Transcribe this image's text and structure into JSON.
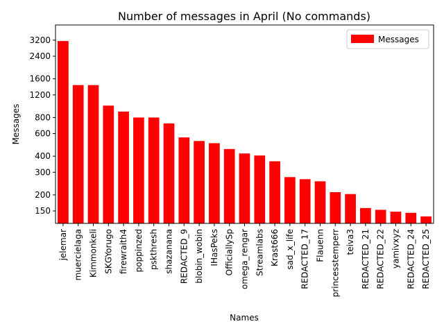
{
  "chart_data": {
    "type": "bar",
    "title": "Number of messages in April (No commands)",
    "xlabel": "Names",
    "ylabel": "Messages",
    "yscale": "log",
    "ylim": [
      120,
      4200
    ],
    "yticks": [
      150,
      200,
      300,
      400,
      600,
      800,
      1200,
      1600,
      2400,
      3200
    ],
    "ytick_labels": [
      "150",
      "200",
      "300",
      "400",
      "600",
      "800",
      "1200",
      "1600",
      "2400",
      "3200"
    ],
    "legend": {
      "placement": "top-right"
    },
    "categories": [
      "jelemar",
      "muercielaga",
      "Kimmonkeli",
      "SKGYorugo",
      "firewraith4",
      "poppinzed",
      "pskthresh",
      "shazanana",
      "REDACTED_9",
      "blobin_wobin",
      "IHasPeks",
      "OfficiallySp",
      "omega_rengar",
      "Streamlabs",
      "Krast666",
      "sad_x_life",
      "REDACTED_17",
      "Flauenn",
      "princesstemperr",
      "teiva3",
      "REDACTED_21",
      "REDACTED_22",
      "yamivxyz",
      "REDACTED_24",
      "REDACTED_25"
    ],
    "series": [
      {
        "name": "Messages",
        "color": "#ff0000",
        "values": [
          3150,
          1430,
          1430,
          990,
          890,
          800,
          800,
          720,
          560,
          525,
          505,
          455,
          420,
          405,
          365,
          275,
          265,
          255,
          210,
          203,
          158,
          153,
          148,
          145,
          136
        ]
      }
    ]
  }
}
